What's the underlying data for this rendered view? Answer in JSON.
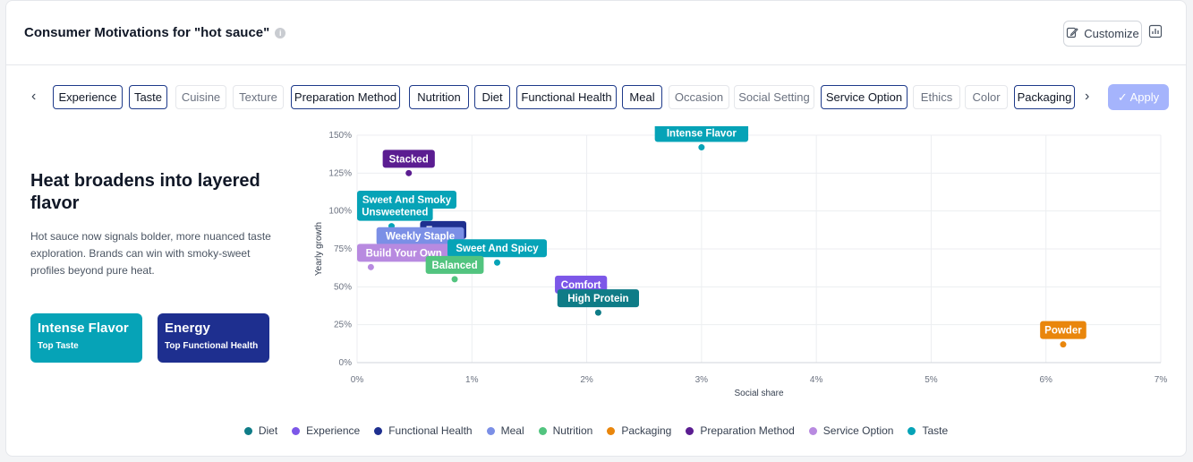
{
  "header": {
    "title": "Consumer Motivations for \"hot sauce\"",
    "info_icon": "info-icon",
    "customize_label": "Customize",
    "customize_icon": "edit-icon",
    "chart_icon": "bar-chart-icon"
  },
  "filters": {
    "prev_icon": "chevron-left-icon",
    "next_icon": "chevron-right-icon",
    "apply_label": "Apply",
    "apply_icon": "check-icon",
    "items": [
      {
        "label": "Experience",
        "selected": true
      },
      {
        "label": "Taste",
        "selected": true
      },
      {
        "label": "Cuisine",
        "selected": false
      },
      {
        "label": "Texture",
        "selected": false
      },
      {
        "label": "Preparation Method",
        "selected": true
      },
      {
        "label": "Nutrition",
        "selected": true
      },
      {
        "label": "Diet",
        "selected": true
      },
      {
        "label": "Functional Health",
        "selected": true
      },
      {
        "label": "Meal",
        "selected": true
      },
      {
        "label": "Occasion",
        "selected": false
      },
      {
        "label": "Social Setting",
        "selected": false
      },
      {
        "label": "Service Option",
        "selected": true
      },
      {
        "label": "Ethics",
        "selected": false
      },
      {
        "label": "Color",
        "selected": false
      },
      {
        "label": "Packaging",
        "selected": true
      }
    ]
  },
  "insight": {
    "headline": "Heat broadens into layered flavor",
    "description": "Hot sauce now signals bolder, more nuanced taste exploration. Brands can win with smoky-sweet profiles beyond pure heat.",
    "tiles": [
      {
        "name": "Intense Flavor",
        "sub": "Top Taste",
        "color": "#06a3b7"
      },
      {
        "name": "Energy",
        "sub": "Top Functional Health",
        "color": "#1e2f8f"
      }
    ]
  },
  "colors": {
    "Diet": "#0f7c87",
    "Experience": "#7c57e8",
    "Functional Health": "#1e2f8f",
    "Meal": "#7b8fe6",
    "Nutrition": "#52c47f",
    "Packaging": "#e9860c",
    "Preparation Method": "#5b1d91",
    "Service Option": "#b88ae0",
    "Taste": "#06a3b7"
  },
  "chart_data": {
    "type": "scatter",
    "xlabel": "Social share",
    "ylabel": "Yearly growth",
    "xlim": [
      0,
      7
    ],
    "ylim": [
      0,
      150
    ],
    "x_ticks": [
      "0%",
      "1%",
      "2%",
      "3%",
      "4%",
      "5%",
      "6%",
      "7%"
    ],
    "y_ticks": [
      "0%",
      "25%",
      "50%",
      "75%",
      "100%",
      "125%",
      "150%"
    ],
    "grid": true,
    "legend_position": "bottom",
    "legend": [
      "Diet",
      "Experience",
      "Functional Health",
      "Meal",
      "Nutrition",
      "Packaging",
      "Preparation Method",
      "Service Option",
      "Taste"
    ],
    "points": [
      {
        "label": "Intense Flavor",
        "category": "Taste",
        "x": 3.0,
        "y": 142
      },
      {
        "label": "Stacked",
        "category": "Preparation Method",
        "x": 0.45,
        "y": 125
      },
      {
        "label": "Sweet And Smoky",
        "category": "Taste",
        "x": 0.35,
        "y": 98
      },
      {
        "label": "Unsweetened",
        "category": "Taste",
        "x": 0.3,
        "y": 90
      },
      {
        "label": "Energy",
        "category": "Functional Health",
        "x": 0.75,
        "y": 78
      },
      {
        "label": "Weekly Staple",
        "category": "Meal",
        "x": 0.55,
        "y": 74
      },
      {
        "label": "Build Your Own",
        "category": "Service Option",
        "x": 0.12,
        "y": 63
      },
      {
        "label": "Sweet And Spicy",
        "category": "Taste",
        "x": 1.22,
        "y": 66
      },
      {
        "label": "Balanced",
        "category": "Nutrition",
        "x": 0.85,
        "y": 55
      },
      {
        "label": "Comfort",
        "category": "Experience",
        "x": 1.95,
        "y": 42
      },
      {
        "label": "High Protein",
        "category": "Diet",
        "x": 2.1,
        "y": 33
      },
      {
        "label": "Powder",
        "category": "Packaging",
        "x": 6.15,
        "y": 12
      }
    ]
  }
}
